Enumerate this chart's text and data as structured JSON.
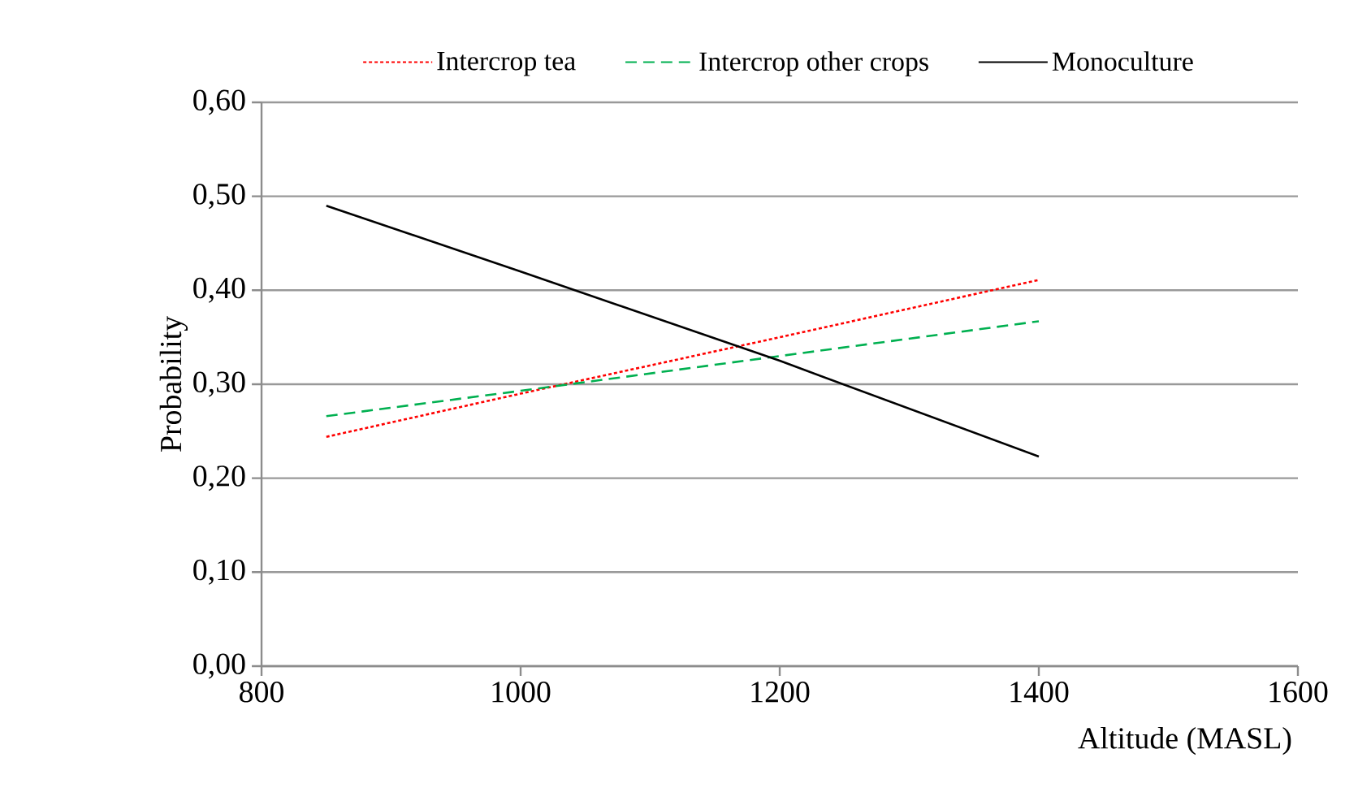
{
  "chart_data": {
    "type": "line",
    "xlabel": "Altitude (MASL)",
    "ylabel": "Probability",
    "xlim": [
      800,
      1600
    ],
    "xticks": [
      800,
      1000,
      1200,
      1400,
      1600
    ],
    "ylim": [
      0,
      0.6
    ],
    "yticks": [
      {
        "value": 0,
        "label": "0,00"
      },
      {
        "value": 0.1,
        "label": "0,10"
      },
      {
        "value": 0.2,
        "label": "0,20"
      },
      {
        "value": 0.3,
        "label": "0,30"
      },
      {
        "value": 0.4,
        "label": "0,40"
      },
      {
        "value": 0.5,
        "label": "0,50"
      },
      {
        "value": 0.6,
        "label": "0,60"
      }
    ],
    "grid": "y",
    "legend": "top",
    "marker": "none",
    "series": [
      {
        "name": "Intercrop tea",
        "color": "#ff0000",
        "line_style": "dotted",
        "x": [
          850,
          1000,
          1200,
          1400
        ],
        "values": [
          0.244,
          0.29,
          0.35,
          0.411
        ]
      },
      {
        "name": "Intercrop other crops",
        "color": "#00b050",
        "line_style": "dashed",
        "x": [
          850,
          1000,
          1200,
          1400
        ],
        "values": [
          0.266,
          0.293,
          0.33,
          0.367
        ]
      },
      {
        "name": "Monoculture",
        "color": "#000000",
        "line_style": "solid",
        "x": [
          850,
          1000,
          1200,
          1400
        ],
        "values": [
          0.49,
          0.42,
          0.325,
          0.223
        ]
      }
    ]
  }
}
